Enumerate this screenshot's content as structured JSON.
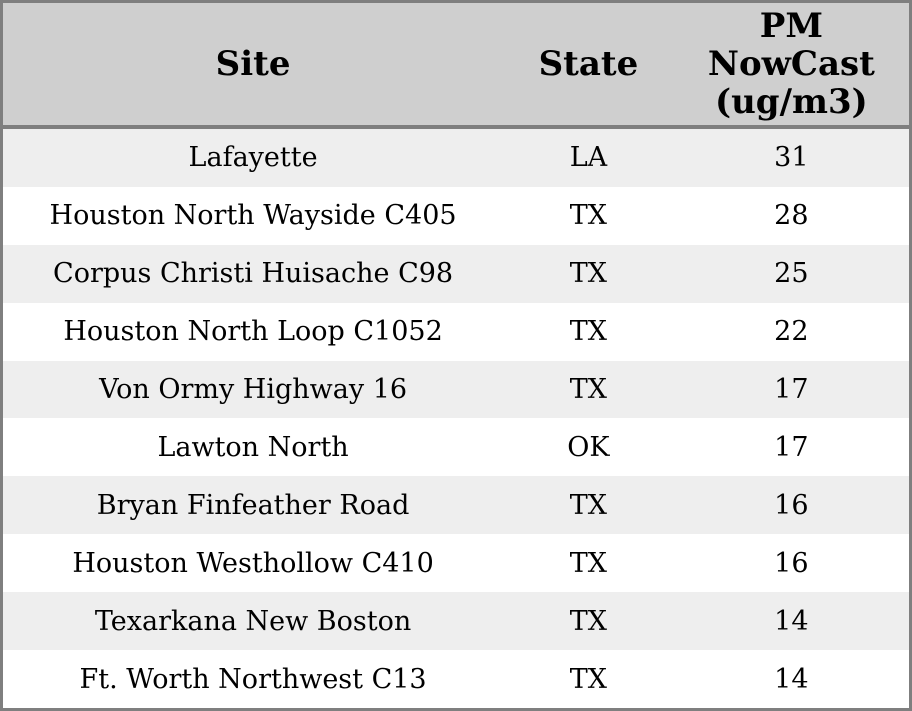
{
  "table": {
    "header": {
      "site_label": "Site",
      "state_label": "State",
      "pm_label": "PM NowCast (ug/m3)",
      "pm_lines": [
        "PM",
        "NowCast",
        "(ug/m3)"
      ]
    },
    "rows": [
      {
        "site": "Lafayette",
        "state": "LA",
        "pm": "31"
      },
      {
        "site": "Houston North Wayside C405",
        "state": "TX",
        "pm": "28"
      },
      {
        "site": "Corpus Christi Huisache C98",
        "state": "TX",
        "pm": "25"
      },
      {
        "site": "Houston North Loop C1052",
        "state": "TX",
        "pm": "22"
      },
      {
        "site": "Von Ormy Highway 16",
        "state": "TX",
        "pm": "17"
      },
      {
        "site": "Lawton North",
        "state": "OK",
        "pm": "17"
      },
      {
        "site": "Bryan Finfeather Road",
        "state": "TX",
        "pm": "16"
      },
      {
        "site": "Houston Westhollow C410",
        "state": "TX",
        "pm": "16"
      },
      {
        "site": "Texarkana New Boston",
        "state": "TX",
        "pm": "14"
      },
      {
        "site": "Ft. Worth Northwest C13",
        "state": "TX",
        "pm": "14"
      }
    ]
  },
  "colors": {
    "header_bg": "#cfcfcf",
    "border": "#7f7f7f",
    "row_stripe": "#eeeeee",
    "row_plain": "#ffffff",
    "text": "#000000"
  },
  "chart_data": {
    "type": "table",
    "title": "",
    "columns": [
      "Site",
      "State",
      "PM NowCast (ug/m3)"
    ],
    "rows": [
      [
        "Lafayette",
        "LA",
        31
      ],
      [
        "Houston North Wayside C405",
        "TX",
        28
      ],
      [
        "Corpus Christi Huisache C98",
        "TX",
        25
      ],
      [
        "Houston North Loop C1052",
        "TX",
        22
      ],
      [
        "Von Ormy Highway 16",
        "TX",
        17
      ],
      [
        "Lawton North",
        "OK",
        17
      ],
      [
        "Bryan Finfeather Road",
        "TX",
        16
      ],
      [
        "Houston Westhollow C410",
        "TX",
        16
      ],
      [
        "Texarkana New Boston",
        "TX",
        14
      ],
      [
        "Ft. Worth Northwest C13",
        "TX",
        14
      ]
    ],
    "layout": {
      "header_background": "#cfcfcf",
      "zebra_striping": true,
      "value_units": "ug/m3"
    }
  }
}
